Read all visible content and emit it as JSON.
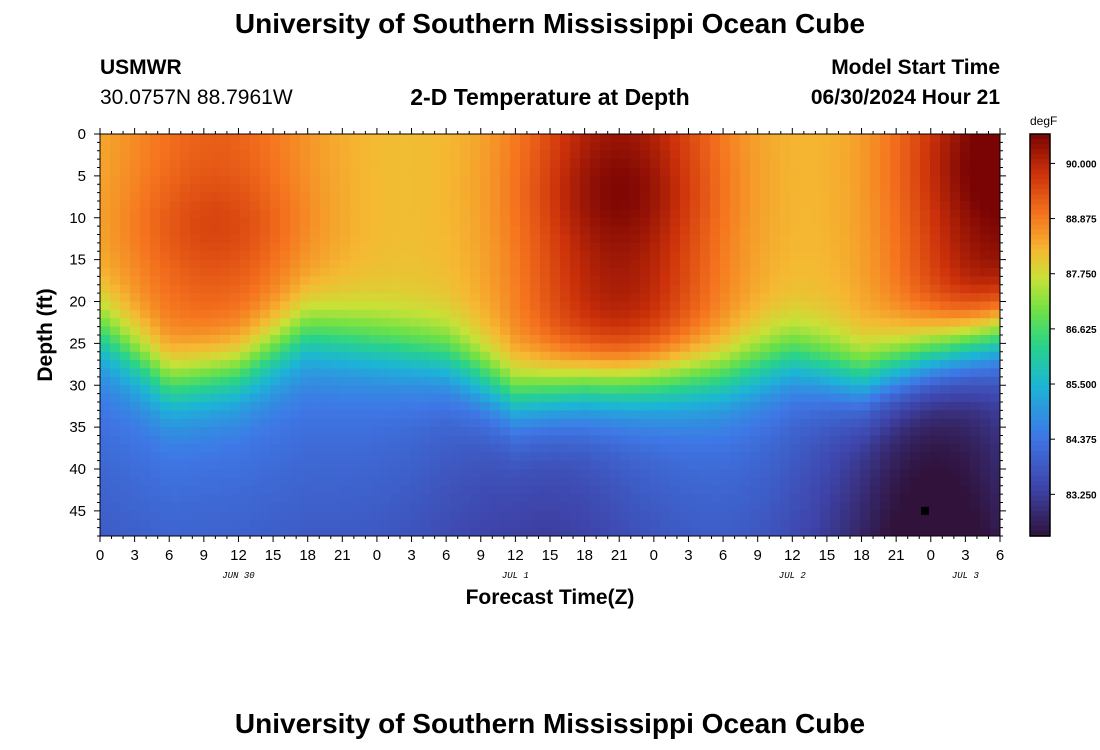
{
  "header": {
    "title": "University of Southern Mississippi Ocean Cube",
    "station": "USMWR",
    "coords": "30.0757N  88.7961W",
    "subtitle": "2-D Temperature at Depth",
    "model_label": "Model Start Time",
    "model_time": "06/30/2024 Hour 21"
  },
  "footer": {
    "title": "University of Southern Mississippi Ocean Cube"
  },
  "chart_data": {
    "type": "heatmap",
    "title": "2-D Temperature at Depth",
    "xlabel": "Forecast Time(Z)",
    "ylabel": "Depth (ft)",
    "units": "degF",
    "x_hours_range": [
      0,
      78
    ],
    "y_depth_range": [
      0,
      48
    ],
    "x_ticks": [
      {
        "h": 0,
        "label": "0"
      },
      {
        "h": 3,
        "label": "3"
      },
      {
        "h": 6,
        "label": "6"
      },
      {
        "h": 9,
        "label": "9"
      },
      {
        "h": 12,
        "label": "12"
      },
      {
        "h": 15,
        "label": "15"
      },
      {
        "h": 18,
        "label": "18"
      },
      {
        "h": 21,
        "label": "21"
      },
      {
        "h": 24,
        "label": "0"
      },
      {
        "h": 27,
        "label": "3"
      },
      {
        "h": 30,
        "label": "6"
      },
      {
        "h": 33,
        "label": "9"
      },
      {
        "h": 36,
        "label": "12"
      },
      {
        "h": 39,
        "label": "15"
      },
      {
        "h": 42,
        "label": "18"
      },
      {
        "h": 45,
        "label": "21"
      },
      {
        "h": 48,
        "label": "0"
      },
      {
        "h": 51,
        "label": "3"
      },
      {
        "h": 54,
        "label": "6"
      },
      {
        "h": 57,
        "label": "9"
      },
      {
        "h": 60,
        "label": "12"
      },
      {
        "h": 63,
        "label": "15"
      },
      {
        "h": 66,
        "label": "18"
      },
      {
        "h": 69,
        "label": "21"
      },
      {
        "h": 72,
        "label": "0"
      },
      {
        "h": 75,
        "label": "3"
      },
      {
        "h": 78,
        "label": "6"
      }
    ],
    "date_labels": [
      {
        "h": 12,
        "label": "JUN 30"
      },
      {
        "h": 36,
        "label": "JUL 1"
      },
      {
        "h": 60,
        "label": "JUL 2"
      },
      {
        "h": 75,
        "label": "JUL 3"
      }
    ],
    "y_ticks": [
      0,
      5,
      10,
      15,
      20,
      25,
      30,
      35,
      40,
      45
    ],
    "colorbar": {
      "min": 82.4,
      "max": 90.6,
      "ticks": [
        {
          "v": 90.0,
          "label": "90.000"
        },
        {
          "v": 88.875,
          "label": "88.875"
        },
        {
          "v": 87.75,
          "label": "87.750"
        },
        {
          "v": 86.625,
          "label": "86.625"
        },
        {
          "v": 85.5,
          "label": "85.500"
        },
        {
          "v": 84.375,
          "label": "84.375"
        },
        {
          "v": 83.25,
          "label": "83.250"
        }
      ]
    },
    "marker": {
      "h": 71.5,
      "depth": 45
    },
    "thermocline_depth_by_hour": [
      {
        "h": 0,
        "depth": 24
      },
      {
        "h": 6,
        "depth": 30
      },
      {
        "h": 12,
        "depth": 28.5
      },
      {
        "h": 18,
        "depth": 24
      },
      {
        "h": 24,
        "depth": 25.5
      },
      {
        "h": 30,
        "depth": 27
      },
      {
        "h": 36,
        "depth": 31.5
      },
      {
        "h": 42,
        "depth": 30
      },
      {
        "h": 48,
        "depth": 29.5
      },
      {
        "h": 54,
        "depth": 29
      },
      {
        "h": 60,
        "depth": 27
      },
      {
        "h": 66,
        "depth": 29.5
      },
      {
        "h": 72,
        "depth": 26.5
      },
      {
        "h": 78,
        "depth": 24
      }
    ],
    "warm_cores": [
      {
        "h": 10,
        "depth": 11,
        "degF": 89.2
      },
      {
        "h": 45,
        "depth": 7,
        "degF": 90.2
      },
      {
        "h": 78,
        "depth": 4,
        "degF": 90.5
      }
    ],
    "cold_cores": [
      {
        "h": 38,
        "depth": 46,
        "degF": 83.6
      },
      {
        "h": 72,
        "depth": 46,
        "degF": 82.6
      }
    ]
  }
}
